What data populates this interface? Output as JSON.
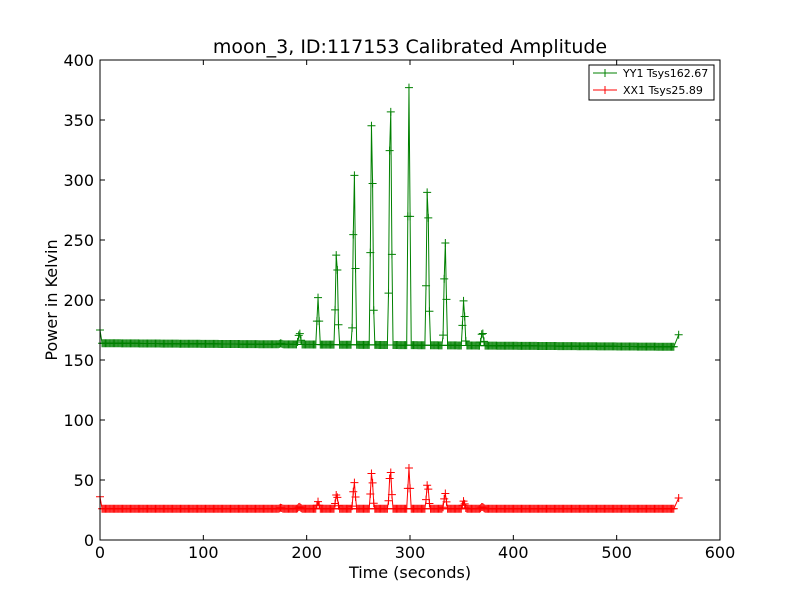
{
  "chart_data": {
    "type": "line",
    "title": "moon_3, ID:117153 Calibrated Amplitude",
    "xlabel": "Time (seconds)",
    "ylabel": "Power in Kelvin",
    "xlim": [
      0,
      600
    ],
    "ylim": [
      0,
      400
    ],
    "x_ticks": [
      0,
      100,
      200,
      300,
      400,
      500,
      600
    ],
    "y_ticks": [
      0,
      50,
      100,
      150,
      200,
      250,
      300,
      350,
      400
    ],
    "grid": false,
    "legend_position": "top-right",
    "marker": "+",
    "series": [
      {
        "name": "YY1 Tsys162.67",
        "color": "#008000",
        "baseline_start": 164,
        "baseline_end": 161,
        "points_sampled": [
          [
            0,
            175
          ],
          [
            2,
            164
          ],
          [
            50,
            163.5
          ],
          [
            100,
            163
          ],
          [
            150,
            162.5
          ],
          [
            175,
            164
          ],
          [
            193,
            174
          ],
          [
            211,
            202
          ],
          [
            229,
            254
          ],
          [
            246,
            318
          ],
          [
            263,
            374
          ],
          [
            281,
            400
          ],
          [
            299,
            377
          ],
          [
            317,
            318
          ],
          [
            334,
            256
          ],
          [
            352,
            203
          ],
          [
            370,
            175
          ],
          [
            400,
            162
          ],
          [
            450,
            161.5
          ],
          [
            500,
            161
          ],
          [
            556,
            160
          ],
          [
            560,
            171
          ]
        ]
      },
      {
        "name": "XX1 Tsys25.89",
        "color": "#ff0000",
        "baseline_start": 26,
        "baseline_end": 26,
        "points_sampled": [
          [
            0,
            36
          ],
          [
            2,
            26
          ],
          [
            50,
            26
          ],
          [
            100,
            26
          ],
          [
            150,
            26
          ],
          [
            193,
            28
          ],
          [
            211,
            32
          ],
          [
            229,
            40
          ],
          [
            246,
            50
          ],
          [
            263,
            60
          ],
          [
            281,
            63
          ],
          [
            299,
            60
          ],
          [
            317,
            50
          ],
          [
            334,
            40
          ],
          [
            352,
            33
          ],
          [
            370,
            28
          ],
          [
            400,
            26
          ],
          [
            450,
            26
          ],
          [
            500,
            26
          ],
          [
            556,
            25
          ],
          [
            560,
            35
          ]
        ]
      }
    ],
    "peaks": {
      "times": [
        175,
        193,
        211,
        229,
        246,
        263,
        281,
        299,
        317,
        334,
        352,
        370
      ],
      "yy_heights": [
        164,
        174,
        202,
        254,
        318,
        374,
        400,
        377,
        318,
        256,
        203,
        175
      ],
      "xx_heights": [
        27,
        28,
        32,
        40,
        50,
        60,
        63,
        60,
        50,
        40,
        33,
        28
      ],
      "half_width_seconds": 2.2
    }
  }
}
